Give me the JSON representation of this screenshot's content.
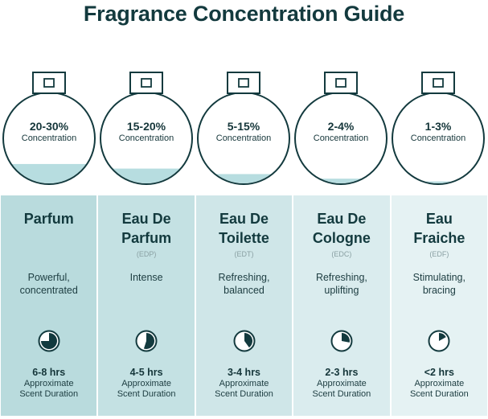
{
  "title": "Fragrance Concentration Guide",
  "colors": {
    "ink": "#133a3e",
    "liquid": "#b7dde0",
    "column_backgrounds": [
      "#b9dbdd",
      "#c4e1e3",
      "#cfe6e8",
      "#daecee",
      "#e5f2f3"
    ]
  },
  "types": [
    {
      "concentration": "20-30%",
      "concentration_label": "Concentration",
      "fill_fraction": 0.22,
      "name_line1": "Parfum",
      "name_line2": "",
      "abbreviation": "",
      "desc_line1": "Powerful,",
      "desc_line2": "concentrated",
      "duration_fraction": 0.75,
      "duration": "6-8 hrs",
      "approx_line1": "Approximate",
      "approx_line2": "Scent Duration"
    },
    {
      "concentration": "15-20%",
      "concentration_label": "Concentration",
      "fill_fraction": 0.17,
      "name_line1": "Eau De",
      "name_line2": "Parfum",
      "abbreviation": "(EDP)",
      "desc_line1": "Intense",
      "desc_line2": "",
      "duration_fraction": 0.55,
      "duration": "4-5 hrs",
      "approx_line1": "Approximate",
      "approx_line2": "Scent Duration"
    },
    {
      "concentration": "5-15%",
      "concentration_label": "Concentration",
      "fill_fraction": 0.11,
      "name_line1": "Eau De",
      "name_line2": "Toilette",
      "abbreviation": "(EDT)",
      "desc_line1": "Refreshing,",
      "desc_line2": "balanced",
      "duration_fraction": 0.4,
      "duration": "3-4 hrs",
      "approx_line1": "Approximate",
      "approx_line2": "Scent Duration"
    },
    {
      "concentration": "2-4%",
      "concentration_label": "Concentration",
      "fill_fraction": 0.06,
      "name_line1": "Eau De",
      "name_line2": "Cologne",
      "abbreviation": "(EDC)",
      "desc_line1": "Refreshing,",
      "desc_line2": "uplifting",
      "duration_fraction": 0.28,
      "duration": "2-3 hrs",
      "approx_line1": "Approximate",
      "approx_line2": "Scent Duration"
    },
    {
      "concentration": "1-3%",
      "concentration_label": "Concentration",
      "fill_fraction": 0.03,
      "name_line1": "Eau",
      "name_line2": "Fraiche",
      "abbreviation": "(EDF)",
      "desc_line1": "Stimulating,",
      "desc_line2": "bracing",
      "duration_fraction": 0.17,
      "duration": "<2 hrs",
      "approx_line1": "Approximate",
      "approx_line2": "Scent Duration"
    }
  ]
}
